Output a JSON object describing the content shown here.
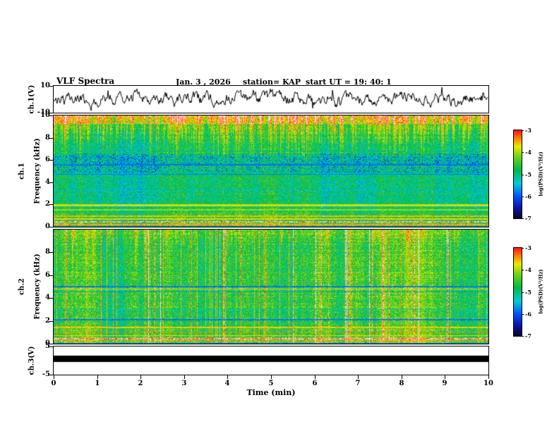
{
  "title": "VLF Spectra",
  "header": {
    "date": "Jan. 3  , 2026",
    "station": "station= KAP",
    "start_ut": "start UT =   19: 40: 1"
  },
  "xaxis": {
    "label": "Time (min)",
    "min": 0,
    "max": 10,
    "ticks": [
      0,
      1,
      2,
      3,
      4,
      5,
      6,
      7,
      8,
      9,
      10
    ]
  },
  "colorbar": {
    "label": "log(PSD)(V²/Hz)",
    "ticks": [
      -3,
      -4,
      -5,
      -6,
      -7
    ],
    "high_color": "#ff1919",
    "low_color": "#08081e"
  },
  "chart_data": [
    {
      "type": "line",
      "name": "ch1-waveform",
      "ylabel": "ch.1(V)",
      "ylim": [
        -10,
        10
      ],
      "yticks": [
        10,
        -10
      ],
      "appearance": "dense black broadband noise trace spanning roughly -9 to +9 V for the full 10 minute record"
    },
    {
      "type": "heatmap",
      "name": "ch1-spectrogram",
      "channel_label": "ch.1",
      "ylabel": "Frequency (kHz)",
      "ylim": [
        0,
        10
      ],
      "yticks": [
        10,
        8,
        6,
        4,
        2,
        0
      ],
      "zlim": [
        -7,
        -3
      ],
      "zlabel": "log(PSD)(V²/Hz)",
      "appearance": "green/cyan noise background, dense red sferic streaks descending from 10 kHz down to ~6 kHz (some reaching 0), dark blue speckle band near 5-6.5 kHz, thin dark lines near 5.6 and 4.8 kHz, bright yellow/white horizontal bands below 2 kHz"
    },
    {
      "type": "heatmap",
      "name": "ch2-spectrogram",
      "channel_label": "ch.2",
      "ylabel": "Frequency (kHz)",
      "ylim": [
        0,
        10
      ],
      "yticks": [
        8,
        6,
        4,
        2,
        0
      ],
      "zlim": [
        -7,
        -3
      ],
      "zlabel": "log(PSD)(V²/Hz)",
      "appearance": "yellow-green mottled noise background with many thin red/orange vertical impulse lines, dark horizontal bands near 5.0, 4.6 and 2.2 kHz, bright yellow/white horizontal bands below 1.5 kHz"
    },
    {
      "type": "line",
      "name": "ch3-waveform",
      "ylabel": "ch.3(V)",
      "ylim": [
        -5,
        5
      ],
      "yticks": [
        5,
        -5
      ],
      "appearance": "saturated channel drawn as a solid thick black horizontal bar just above 0 V spanning the full record"
    }
  ]
}
